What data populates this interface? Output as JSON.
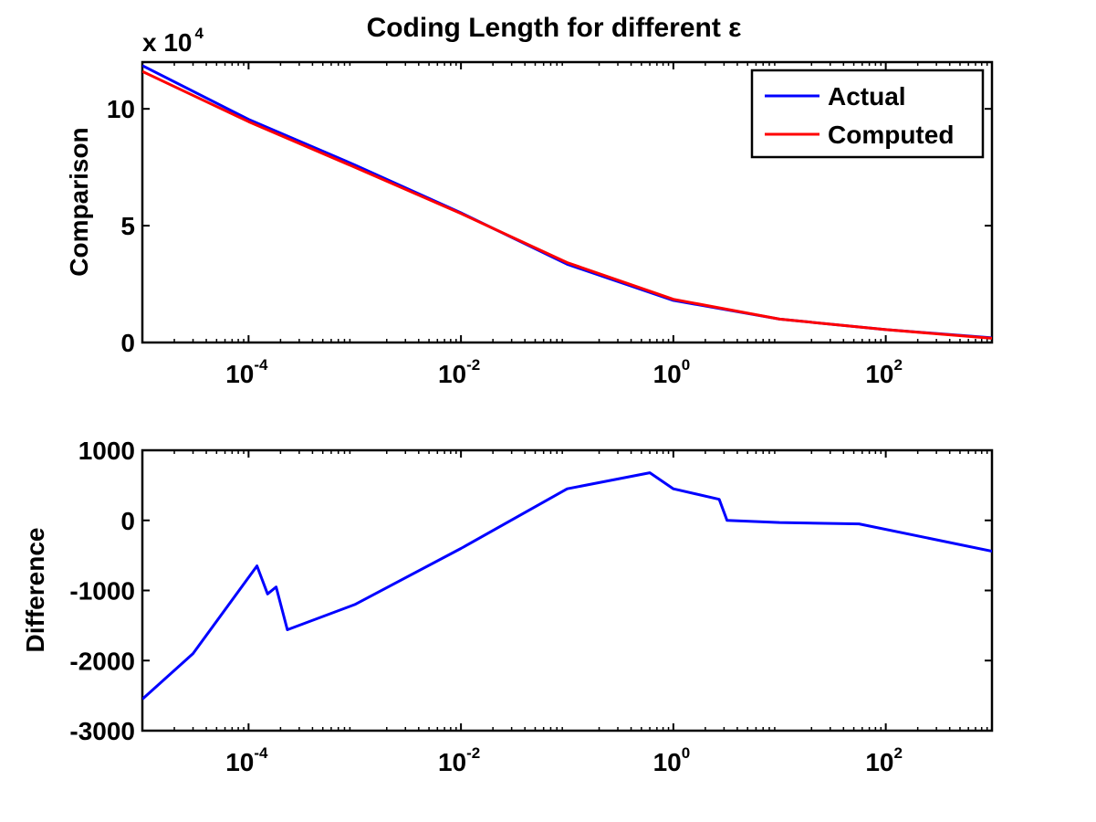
{
  "figure": {
    "title": "Coding Length for different ε"
  },
  "chart_data": [
    {
      "type": "line",
      "panel": "top",
      "title": "Coding Length for different ε",
      "xlabel": "",
      "ylabel": "Comparison",
      "xscale": "log",
      "xlim": [
        1e-05,
        1000
      ],
      "ylim": [
        0,
        120000
      ],
      "y_exponent_label": {
        "base": "x 10",
        "exp": "4"
      },
      "xticks": [
        {
          "value": 0.0001,
          "base": "10",
          "exp": "-4"
        },
        {
          "value": 0.01,
          "base": "10",
          "exp": "-2"
        },
        {
          "value": 1,
          "base": "10",
          "exp": "0"
        },
        {
          "value": 100,
          "base": "10",
          "exp": "2"
        }
      ],
      "yticks": [
        {
          "value": 0,
          "label": "0"
        },
        {
          "value": 50000,
          "label": "5"
        },
        {
          "value": 100000,
          "label": "10"
        }
      ],
      "grid": false,
      "legend": {
        "placement": "top-right",
        "entries": [
          "Actual",
          "Computed"
        ]
      },
      "series": [
        {
          "name": "Actual",
          "color": "#0000ff",
          "x": [
            1e-05,
            0.0001,
            0.001,
            0.01,
            0.1,
            1,
            10,
            100,
            1000
          ],
          "y": [
            118500,
            95500,
            76000,
            55500,
            33500,
            18000,
            10000,
            5500,
            2000
          ]
        },
        {
          "name": "Computed",
          "color": "#ff0000",
          "x": [
            1e-05,
            0.0001,
            0.001,
            0.01,
            0.1,
            1,
            10,
            100,
            1000
          ],
          "y": [
            116000,
            94500,
            75000,
            55200,
            34200,
            18500,
            10000,
            5500,
            1800
          ]
        }
      ]
    },
    {
      "type": "line",
      "panel": "bottom",
      "xlabel": "",
      "ylabel": "Difference",
      "xscale": "log",
      "xlim": [
        1e-05,
        1000
      ],
      "ylim": [
        -3000,
        1000
      ],
      "xticks": [
        {
          "value": 0.0001,
          "base": "10",
          "exp": "-4"
        },
        {
          "value": 0.01,
          "base": "10",
          "exp": "-2"
        },
        {
          "value": 1,
          "base": "10",
          "exp": "0"
        },
        {
          "value": 100,
          "base": "10",
          "exp": "2"
        }
      ],
      "yticks": [
        {
          "value": -3000,
          "label": "-3000"
        },
        {
          "value": -2000,
          "label": "-2000"
        },
        {
          "value": -1000,
          "label": "-1000"
        },
        {
          "value": 0,
          "label": "0"
        },
        {
          "value": 1000,
          "label": "1000"
        }
      ],
      "grid": false,
      "series": [
        {
          "color": "#0000ff",
          "x": [
            1e-05,
            3e-05,
            0.00012,
            0.000151,
            0.000182,
            0.000232,
            0.001,
            0.01,
            0.1,
            0.6,
            1,
            2.7,
            3.2,
            10,
            56,
            1000
          ],
          "y": [
            -2550,
            -1900,
            -650,
            -1050,
            -950,
            -1560,
            -1200,
            -400,
            450,
            680,
            450,
            300,
            0,
            -30,
            -50,
            -440
          ]
        }
      ]
    }
  ]
}
